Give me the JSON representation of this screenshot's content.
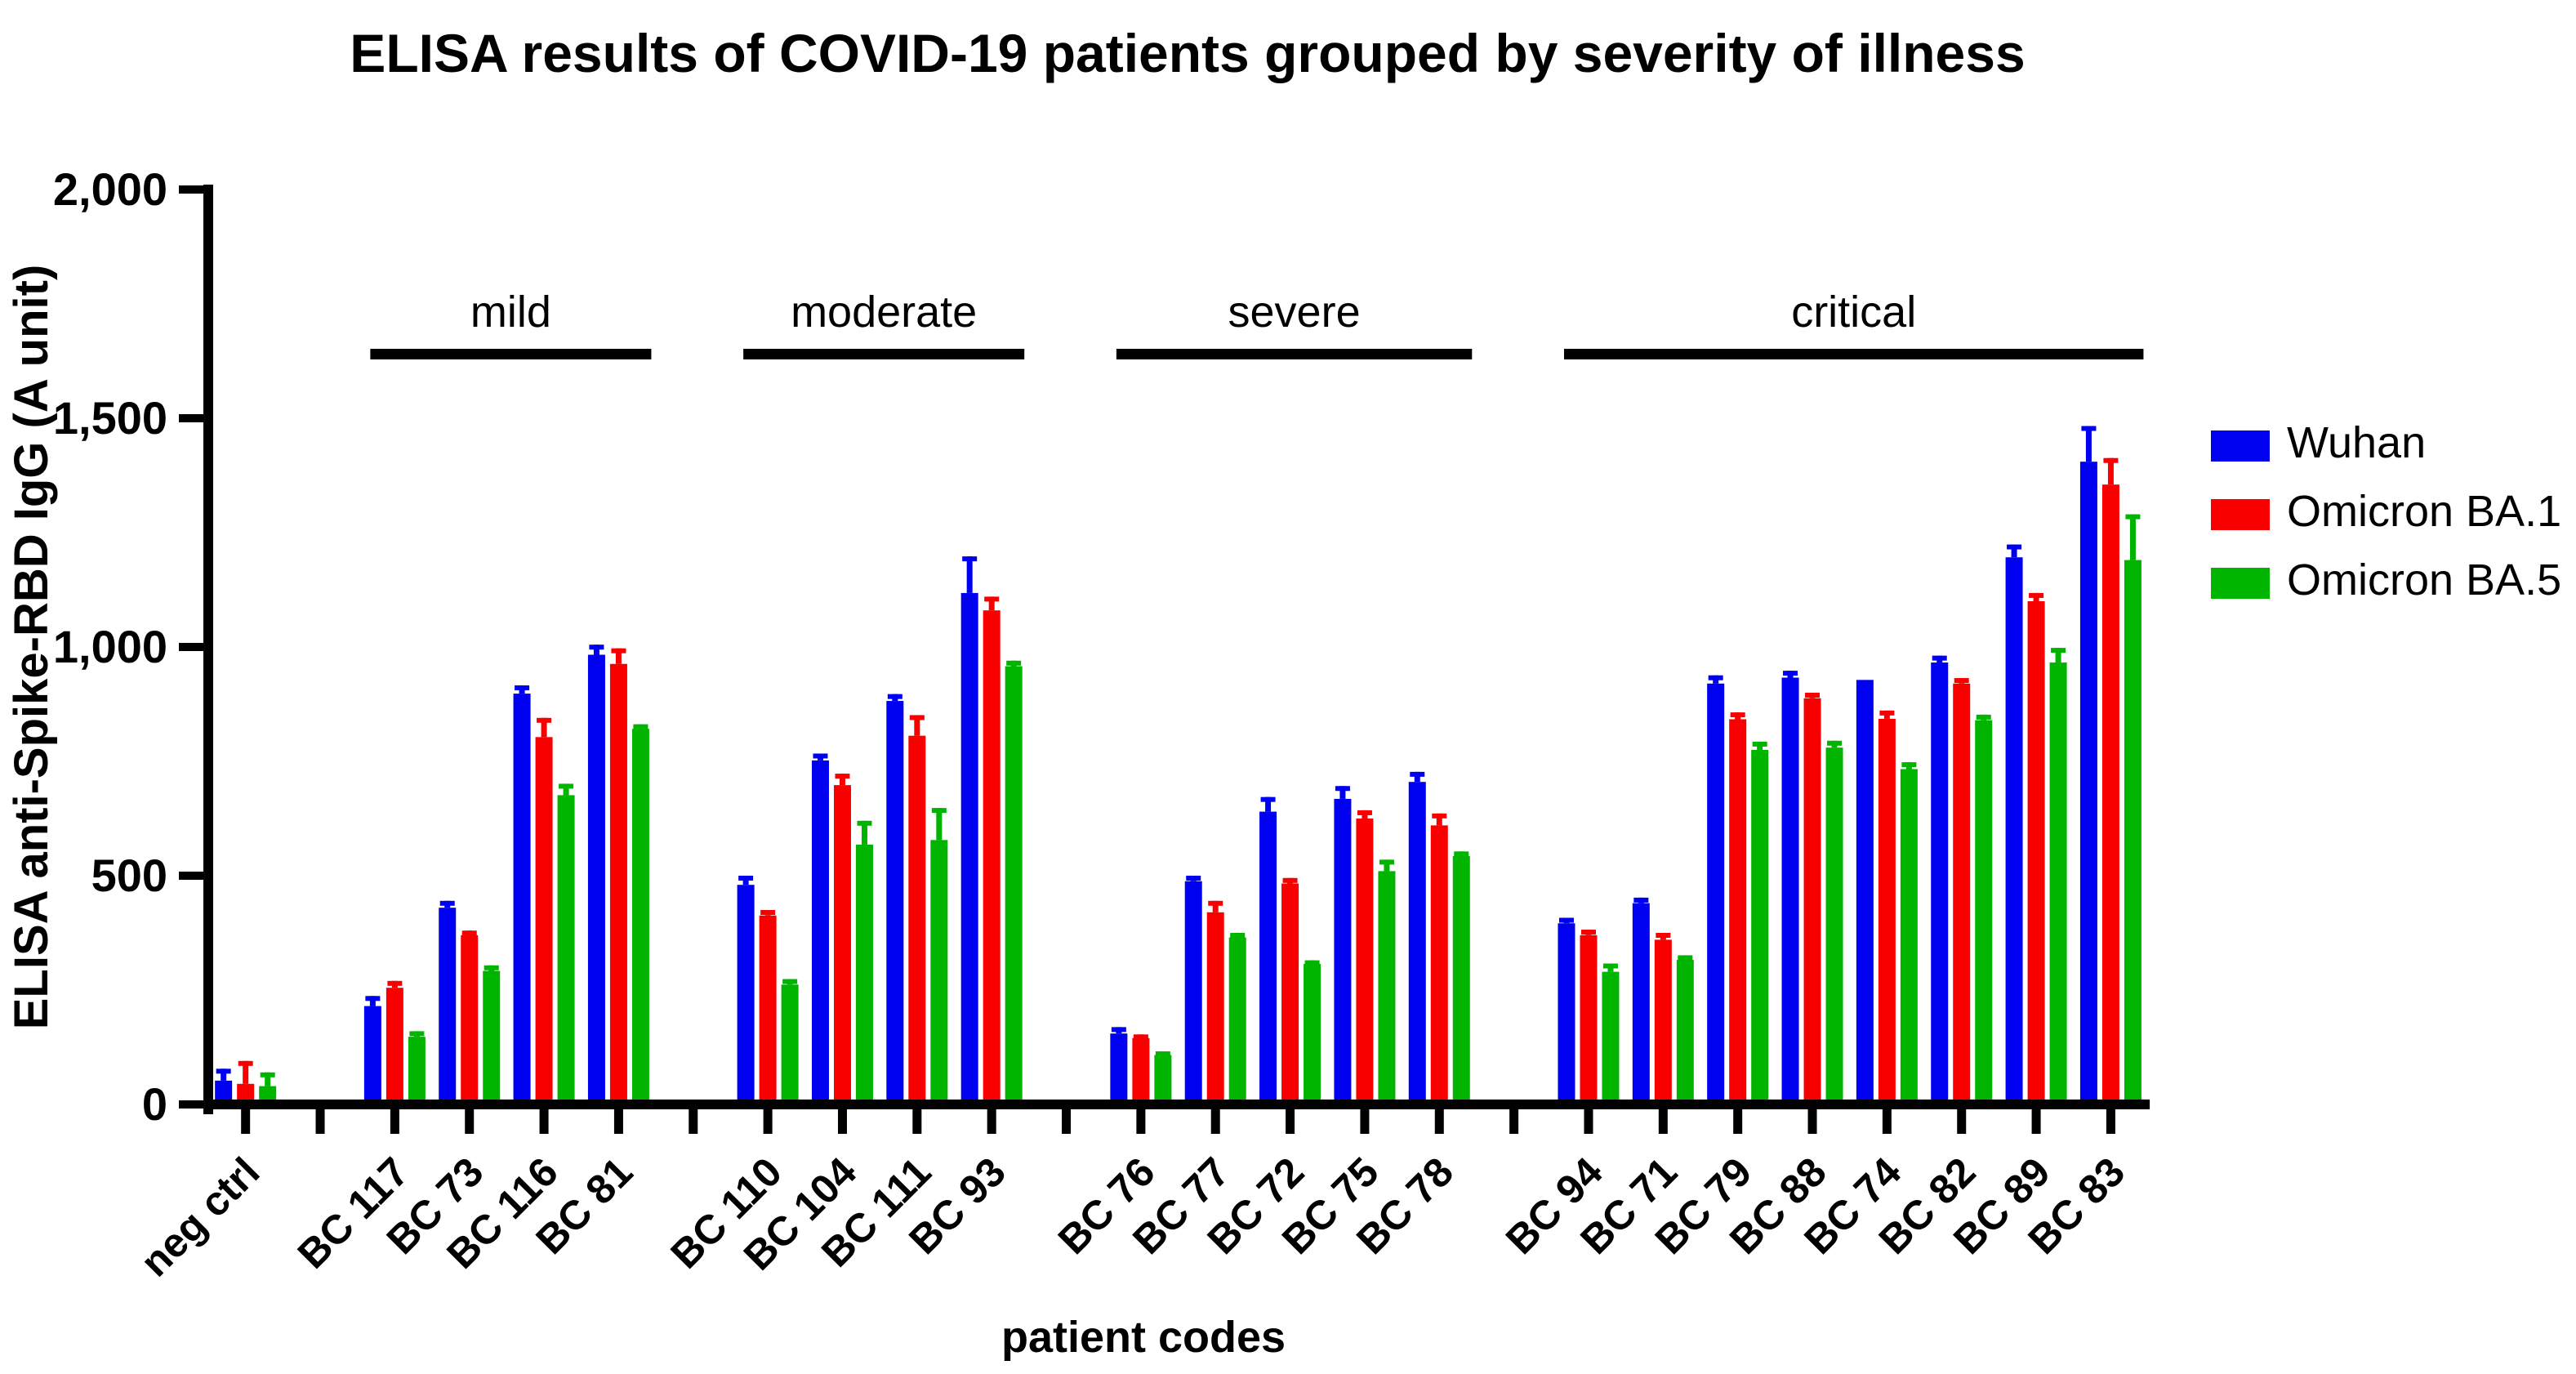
{
  "figure": {
    "background": "#ffffff",
    "axis_color": "#000000"
  },
  "chart_data": {
    "type": "bar",
    "title": "ELISA results of COVID-19 patients grouped by severity of illness",
    "xlabel": "patient codes",
    "ylabel": "ELISA anti-Spike-RBD IgG (A unit)",
    "ylim": [
      0,
      2000
    ],
    "grid": false,
    "legend_position": "right",
    "ytick_values": [
      0,
      500,
      1000,
      1500,
      2000
    ],
    "ytick_labels": [
      "0",
      "500",
      "1,000",
      "1,500",
      "2,000"
    ],
    "series": [
      {
        "name": "Wuhan",
        "color": "#0000f0"
      },
      {
        "name": "Omicron BA.1",
        "color": "#f80000"
      },
      {
        "name": "Omicron BA.5",
        "color": "#00b400"
      }
    ],
    "groups": [
      {
        "label": "",
        "bracket": false,
        "patients": [
          {
            "code": "neg ctrl",
            "values": [
              52,
              45,
              40
            ],
            "errors": [
              26,
              50,
              30
            ]
          }
        ]
      },
      {
        "label": "mild",
        "bracket": true,
        "patients": [
          {
            "code": "BC 117",
            "values": [
              215,
              255,
              148
            ],
            "errors": [
              22,
              15,
              12
            ]
          },
          {
            "code": "BC 73",
            "values": [
              430,
              370,
              292
            ],
            "errors": [
              15,
              10,
              12
            ]
          },
          {
            "code": "BC 116",
            "values": [
              898,
              803,
              676
            ],
            "errors": [
              18,
              42,
              25
            ]
          },
          {
            "code": "BC 81",
            "values": [
              983,
              963,
              821
            ],
            "errors": [
              22,
              34,
              10
            ]
          }
        ]
      },
      {
        "label": "moderate",
        "bracket": true,
        "patients": [
          {
            "code": "BC 110",
            "values": [
              480,
              413,
              262
            ],
            "errors": [
              20,
              12,
              12
            ]
          },
          {
            "code": "BC 104",
            "values": [
              752,
              698,
              568
            ],
            "errors": [
              15,
              25,
              52
            ]
          },
          {
            "code": "BC 111",
            "values": [
              882,
              806,
              578
            ],
            "errors": [
              15,
              45,
              70
            ]
          },
          {
            "code": "BC 93",
            "values": [
              1118,
              1080,
              958
            ],
            "errors": [
              80,
              30,
              12
            ]
          }
        ]
      },
      {
        "label": "severe",
        "bracket": true,
        "patients": [
          {
            "code": "BC 76",
            "values": [
              155,
              145,
              108
            ],
            "errors": [
              14,
              8,
              8
            ]
          },
          {
            "code": "BC 77",
            "values": [
              488,
              420,
              365
            ],
            "errors": [
              12,
              25,
              10
            ]
          },
          {
            "code": "BC 72",
            "values": [
              640,
              483,
              307
            ],
            "errors": [
              32,
              12,
              8
            ]
          },
          {
            "code": "BC 75",
            "values": [
              668,
              625,
              510
            ],
            "errors": [
              28,
              18,
              25
            ]
          },
          {
            "code": "BC 78",
            "values": [
              705,
              610,
              543
            ],
            "errors": [
              22,
              26,
              10
            ]
          }
        ]
      },
      {
        "label": "critical",
        "bracket": true,
        "patients": [
          {
            "code": "BC 94",
            "values": [
              396,
              370,
              290
            ],
            "errors": [
              12,
              12,
              18
            ]
          },
          {
            "code": "BC 71",
            "values": [
              440,
              360,
              316
            ],
            "errors": [
              12,
              15,
              10
            ]
          },
          {
            "code": "BC 79",
            "values": [
              920,
              842,
              775
            ],
            "errors": [
              18,
              15,
              18
            ]
          },
          {
            "code": "BC 88",
            "values": [
              933,
              888,
              780
            ],
            "errors": [
              15,
              12,
              15
            ]
          },
          {
            "code": "BC 74",
            "values": [
              928,
              843,
              733
            ],
            "errors": [
              0,
              18,
              15
            ]
          },
          {
            "code": "BC 82",
            "values": [
              966,
              920,
              840
            ],
            "errors": [
              15,
              12,
              12
            ]
          },
          {
            "code": "BC 89",
            "values": [
              1196,
              1100,
              966
            ],
            "errors": [
              28,
              18,
              32
            ]
          },
          {
            "code": "BC 83",
            "values": [
              1405,
              1355,
              1190
            ],
            "errors": [
              78,
              58,
              100
            ]
          }
        ]
      }
    ]
  }
}
